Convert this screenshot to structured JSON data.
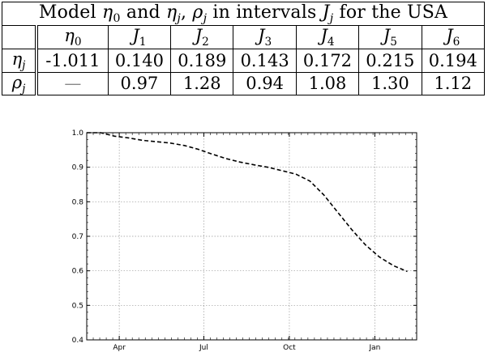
{
  "table": {
    "caption_parts": [
      "Model ",
      "η",
      "0",
      " and ",
      "η",
      "j",
      ", ",
      "ρ",
      "j",
      " in intervals ",
      "J",
      "j",
      " for the USA"
    ],
    "header": [
      {
        "sym": "η",
        "sub": "0"
      },
      {
        "sym": "J",
        "sub": "1"
      },
      {
        "sym": "J",
        "sub": "2"
      },
      {
        "sym": "J",
        "sub": "3"
      },
      {
        "sym": "J",
        "sub": "4"
      },
      {
        "sym": "J",
        "sub": "5"
      },
      {
        "sym": "J",
        "sub": "6"
      }
    ],
    "rows": [
      {
        "sym": "η",
        "sub": "j",
        "values": [
          "-1.011",
          "0.140",
          "0.189",
          "0.143",
          "0.172",
          "0.215",
          "0.194"
        ]
      },
      {
        "sym": "ρ",
        "sub": "j",
        "values": [
          "—",
          "0.97",
          "1.28",
          "0.94",
          "1.08",
          "1.30",
          "1.12"
        ]
      }
    ]
  },
  "chart_data": {
    "type": "line",
    "title": "",
    "xlabel": "",
    "ylabel": "",
    "x_ticks": [
      {
        "label": "Apr",
        "x": 35
      },
      {
        "label": "Jul",
        "x": 126
      },
      {
        "label": "Oct",
        "x": 218
      },
      {
        "label": "Jan",
        "x": 310
      }
    ],
    "xlim": [
      0,
      355
    ],
    "ylim": [
      0.4,
      1.0
    ],
    "y_ticks": [
      1.0,
      0.9,
      0.8,
      0.7,
      0.6,
      0.5,
      0.4
    ],
    "grid": true,
    "line_style": "dashed",
    "series": [
      {
        "name": "",
        "x": [
          0,
          15,
          30,
          45,
          60,
          75,
          90,
          105,
          120,
          135,
          150,
          165,
          180,
          195,
          210,
          225,
          240,
          255,
          270,
          285,
          300,
          315,
          330,
          345
        ],
        "y": [
          1.0,
          1.0,
          0.99,
          0.985,
          0.978,
          0.974,
          0.97,
          0.963,
          0.952,
          0.938,
          0.925,
          0.915,
          0.907,
          0.9,
          0.89,
          0.88,
          0.86,
          0.82,
          0.77,
          0.72,
          0.675,
          0.64,
          0.615,
          0.598
        ]
      }
    ]
  }
}
